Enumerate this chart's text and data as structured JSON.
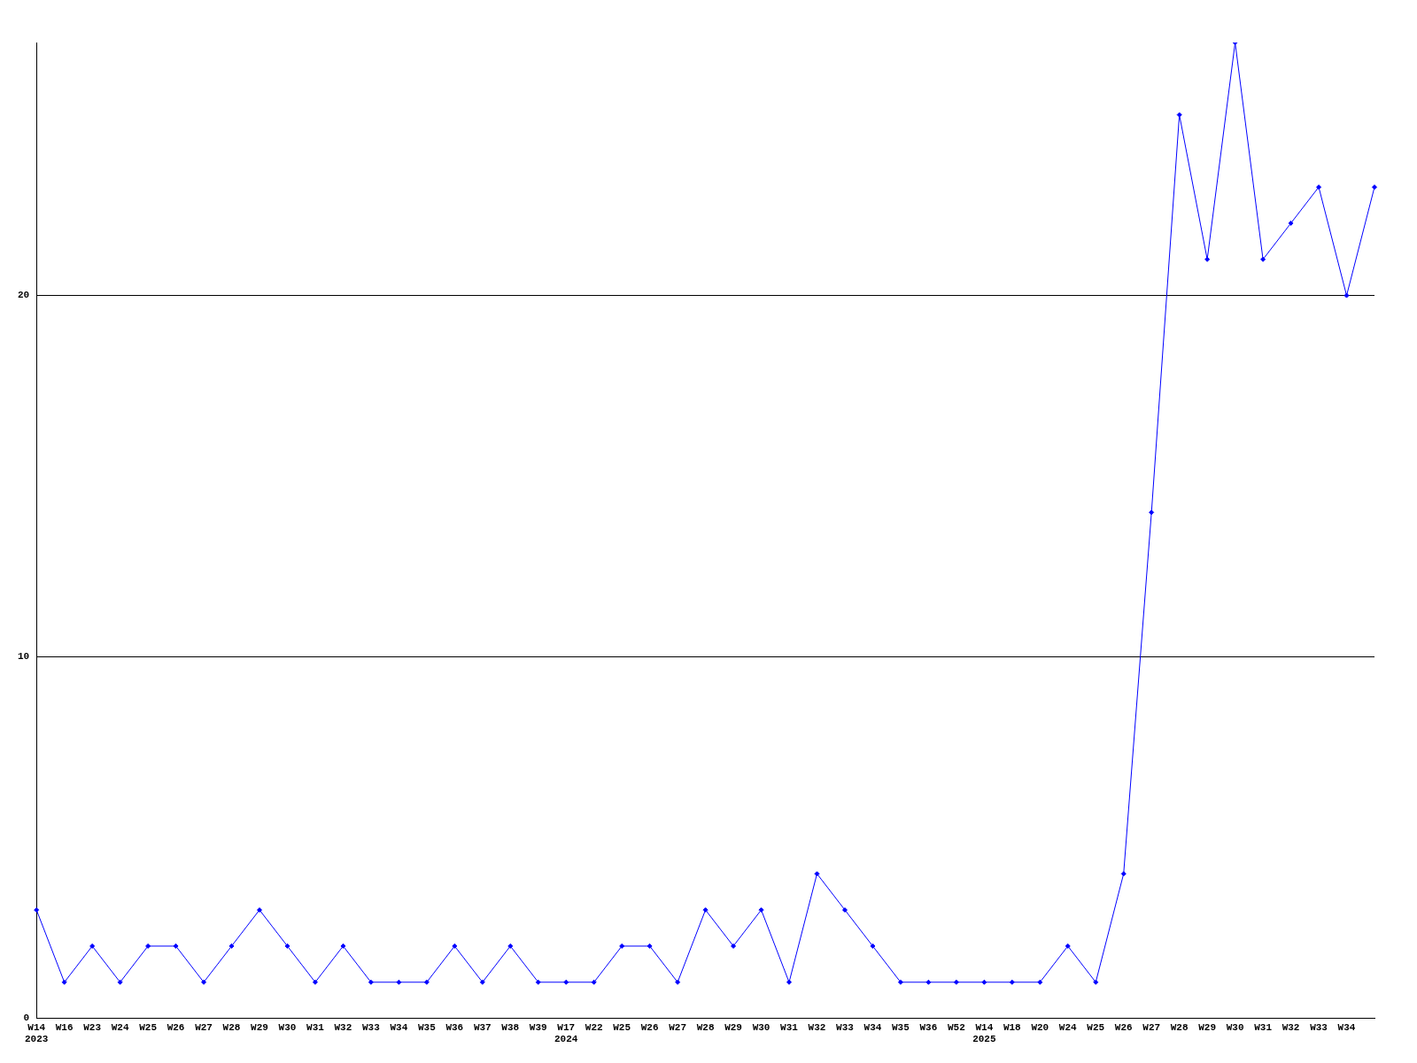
{
  "chart_data": {
    "type": "line",
    "categories": [
      "W14\n2023",
      "W16",
      "W23",
      "W24",
      "W25",
      "W26",
      "W27",
      "W28",
      "W29",
      "W30",
      "W31",
      "W32",
      "W33",
      "W34",
      "W35",
      "W36",
      "W37",
      "W38",
      "W39",
      "W17\n2024",
      "W22",
      "W25",
      "W26",
      "W27",
      "W28",
      "W29",
      "W30",
      "W31",
      "W32",
      "W33",
      "W34",
      "W35",
      "W36",
      "W52",
      "W14\n2025",
      "W18",
      "W20",
      "W24",
      "W25",
      "W26",
      "W27",
      "W28",
      "W29",
      "W30",
      "W31",
      "W32",
      "W33",
      "W34",
      null
    ],
    "series": [
      {
        "color": "#0000ff",
        "values": [
          3,
          1,
          2,
          1,
          2,
          2,
          1,
          2,
          3,
          2,
          1,
          2,
          1,
          1,
          1,
          2,
          1,
          2,
          1,
          1,
          1,
          2,
          2,
          1,
          3,
          2,
          3,
          1,
          4,
          3,
          2,
          1,
          1,
          1,
          1,
          1,
          1,
          2,
          1,
          4,
          14,
          25,
          21,
          27,
          21,
          22,
          23,
          20,
          23
        ]
      }
    ],
    "ylim": [
      0,
      27
    ],
    "yticks": [
      0,
      10,
      20
    ],
    "grid": "y",
    "marker": "diamond",
    "line_style": "solid",
    "legend": false
  }
}
